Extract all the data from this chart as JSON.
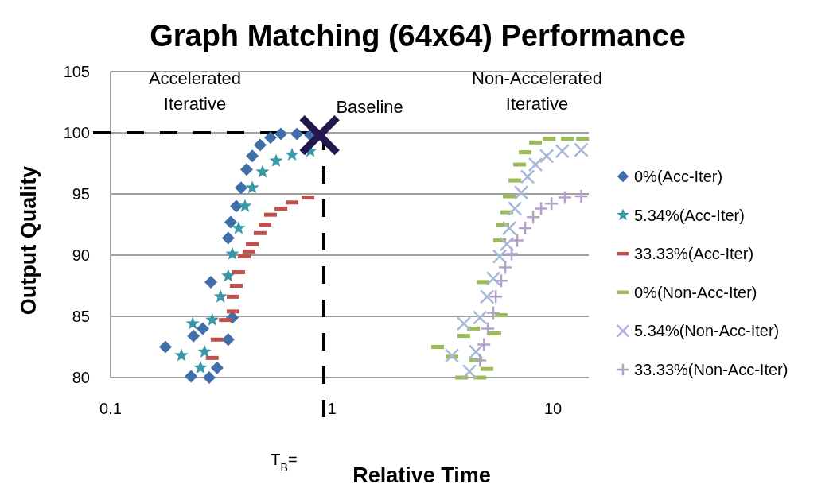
{
  "chart_data": {
    "type": "scatter",
    "title": "Graph Matching (64x64) Performance",
    "xlabel": "Relative Time",
    "ylabel": "Output Quality",
    "log": "x",
    "xlim": [
      0.1,
      14.5
    ],
    "xticks": [
      0.1,
      1,
      10
    ],
    "ylim": [
      80,
      105
    ],
    "yticks": [
      80,
      85,
      90,
      95,
      100,
      105
    ],
    "grid": "y",
    "legend": "right",
    "annotations": [
      "Accelerated Iterative",
      {
        "text": "Baseline",
        "x": 0.88,
        "y": 99.8
      },
      "Non-Accelerated Iterative"
    ],
    "ref_lines": [
      {
        "axis": "x",
        "value": 0.92,
        "label": "T$_{B}$=",
        "color": "#000000",
        "line_style": "dashed"
      },
      {
        "axis": "y",
        "value": 100,
        "label": null,
        "color": "#000000",
        "line_style": "dashed"
      }
    ],
    "series": [
      {
        "name": "0%(Acc-Iter)",
        "color": "#3f6ea8",
        "marker": "diamond",
        "x": [
          0.177,
          0.231,
          0.279,
          0.303,
          0.237,
          0.261,
          0.284,
          0.34,
          0.355,
          0.34,
          0.349,
          0.37,
          0.389,
          0.412,
          0.437,
          0.474,
          0.528,
          0.589,
          0.695,
          0.8
        ],
        "values": [
          82.5,
          80.1,
          80.0,
          80.8,
          83.4,
          84.0,
          87.8,
          83.1,
          84.9,
          91.4,
          92.7,
          94.0,
          95.5,
          97.0,
          98.1,
          99.0,
          99.6,
          99.9,
          99.9,
          99.8
        ]
      },
      {
        "name": "5.34%(Acc-Iter)",
        "color": "#3a97a8",
        "marker": "star",
        "x": [
          0.209,
          0.235,
          0.255,
          0.266,
          0.288,
          0.314,
          0.34,
          0.355,
          0.379,
          0.405,
          0.437,
          0.486,
          0.56,
          0.661,
          0.8
        ],
        "values": [
          81.8,
          84.4,
          80.8,
          82.1,
          84.7,
          86.6,
          88.3,
          90.1,
          92.2,
          94.0,
          95.5,
          96.8,
          97.7,
          98.2,
          98.5
        ]
      },
      {
        "name": "33.33%(Acc-Iter)",
        "color": "#c0504d",
        "x": [
          0.288,
          0.303,
          0.33,
          0.358,
          0.358,
          0.37,
          0.379,
          0.402,
          0.422,
          0.437,
          0.474,
          0.499,
          0.528,
          0.589,
          0.661,
          0.78
        ],
        "values": [
          81.6,
          83.1,
          84.7,
          85.4,
          86.6,
          87.5,
          88.6,
          89.9,
          90.3,
          90.9,
          91.8,
          92.5,
          93.3,
          93.8,
          94.3,
          94.7
        ]
      },
      {
        "name": "0%(Non-Acc-Iter)",
        "color": "#9bbb59",
        "x": [
          3.01,
          3.86,
          4.67,
          3.49,
          4.48,
          5.03,
          3.95,
          4.37,
          4.82,
          5.46,
          5.83,
          5.74,
          5.93,
          6.18,
          6.34,
          6.72,
          7.06,
          7.48,
          8.33,
          9.6,
          11.6,
          13.6
        ],
        "values": [
          82.5,
          80.0,
          80.0,
          81.7,
          81.4,
          80.7,
          83.4,
          84.0,
          87.8,
          83.6,
          85.1,
          91.2,
          92.5,
          93.5,
          94.8,
          96.1,
          97.4,
          98.4,
          99.2,
          99.5,
          99.5,
          99.5
        ]
      },
      {
        "name": "5.34%(Non-Acc-Iter)",
        "color": "#a5b8d8",
        "marker": "cross",
        "x": [
          3.95,
          3.49,
          4.19,
          4.48,
          4.67,
          5.03,
          5.37,
          5.74,
          6.18,
          6.34,
          6.72,
          7.18,
          7.67,
          8.33,
          9.36,
          11.0,
          13.4
        ],
        "values": [
          84.4,
          81.8,
          80.5,
          82.1,
          84.9,
          86.6,
          88.1,
          89.9,
          90.9,
          92.2,
          93.8,
          95.1,
          96.4,
          97.4,
          98.1,
          98.5,
          98.6
        ]
      },
      {
        "name": "33.33%(Non-Acc-Iter)",
        "color": "#b3a2c7",
        "marker": "plus",
        "x": [
          4.67,
          4.87,
          5.07,
          5.37,
          5.51,
          5.83,
          6.08,
          6.5,
          6.89,
          7.48,
          8.13,
          8.83,
          9.84,
          11.3,
          13.4
        ],
        "values": [
          81.4,
          82.7,
          84.0,
          85.3,
          86.6,
          87.9,
          89.0,
          90.1,
          91.2,
          92.2,
          93.1,
          93.8,
          94.2,
          94.7,
          94.8
        ]
      }
    ]
  }
}
